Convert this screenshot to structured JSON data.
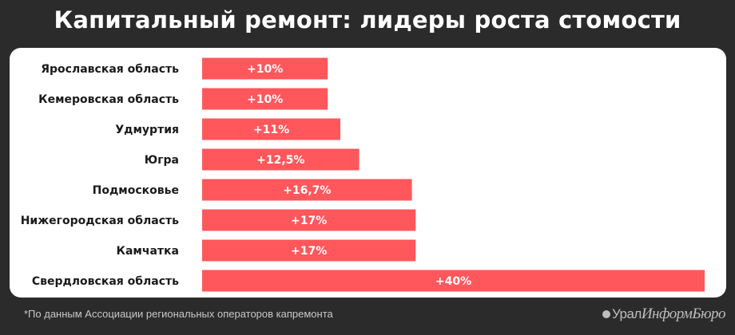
{
  "title": "Капитальный ремонт: лидеры роста стомости",
  "footnote": "*По данным Ассоциации региональных операторов капремонта",
  "logo": {
    "part1": "Урал",
    "part2": "ИнформБюро"
  },
  "colors": {
    "background": "#2b2b2b",
    "panel": "#ffffff",
    "bar": "#ff575b",
    "bar_label": "#ffffff",
    "category_label": "#1a1a1a"
  },
  "chart_data": {
    "type": "bar",
    "orientation": "horizontal",
    "categories": [
      "Ярославская область",
      "Кемеровская область",
      "Удмуртия",
      "Югра",
      "Подмосковье",
      "Нижегородская область",
      "Камчатка",
      "Свердловская область"
    ],
    "values": [
      10,
      10,
      11,
      12.5,
      16.7,
      17,
      17,
      40
    ],
    "value_labels": [
      "+10%",
      "+10%",
      "+11%",
      "+12,5%",
      "+16,7%",
      "+17%",
      "+17%",
      "+40%"
    ],
    "xlim": [
      0,
      40
    ],
    "grid": false,
    "legend": "none"
  }
}
